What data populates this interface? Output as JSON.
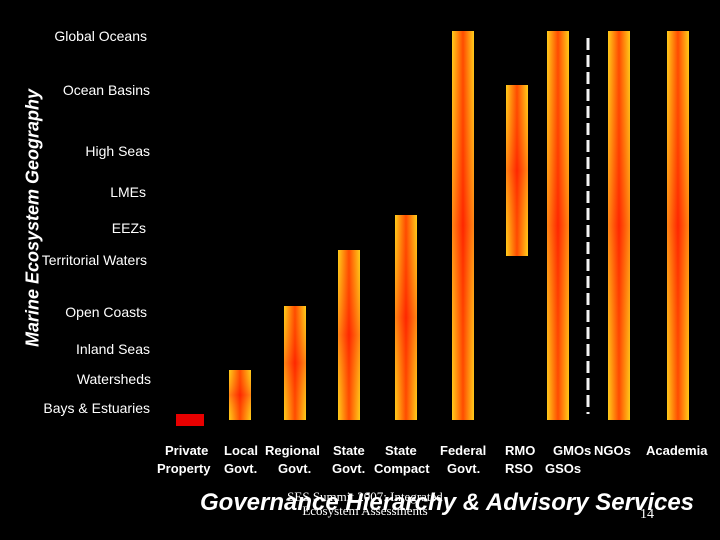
{
  "chart_data": {
    "type": "bar",
    "y_axis_title": "Marine Ecosystem Geography",
    "scale_levels": [
      "Global Oceans",
      "Ocean Basins",
      "High Seas",
      "LMEs",
      "EEZs",
      "Territorial Waters",
      "Open Coasts",
      "Inland Seas",
      "Watersheds",
      "Bays & Estuaries"
    ],
    "categories": [
      "Private Property",
      "Local Govt.",
      "Regional Govt.",
      "State Govt.",
      "State Compact",
      "Federal Govt.",
      "RMO RSO",
      "GMOs GSOs",
      "NGOs",
      "Academia"
    ],
    "x_label_lines": [
      [
        "Private",
        "Property"
      ],
      [
        "Local",
        "Govt."
      ],
      [
        "Regional",
        "Govt."
      ],
      [
        "State",
        "Govt."
      ],
      [
        "State",
        "Compact"
      ],
      [
        "Federal",
        "Govt."
      ],
      [
        "RMO",
        "RSO"
      ],
      [
        "GMOs",
        "GSOs"
      ],
      [
        "NGOs",
        ""
      ],
      [
        "Academia",
        ""
      ]
    ],
    "ranges": [
      {
        "category": "Private Property",
        "from": "Bays & Estuaries",
        "to": "Bays & Estuaries"
      },
      {
        "category": "Local Govt.",
        "from": "Bays & Estuaries",
        "to": "Watersheds"
      },
      {
        "category": "Regional Govt.",
        "from": "Bays & Estuaries",
        "to": "Open Coasts"
      },
      {
        "category": "State Govt.",
        "from": "Bays & Estuaries",
        "to": "Territorial Waters"
      },
      {
        "category": "State Compact",
        "from": "Bays & Estuaries",
        "to": "EEZs"
      },
      {
        "category": "Federal Govt.",
        "from": "Bays & Estuaries",
        "to": "Global Oceans"
      },
      {
        "category": "RMO RSO",
        "from": "Territorial Waters",
        "to": "Ocean Basins"
      },
      {
        "category": "GMOs GSOs",
        "from": "Bays & Estuaries",
        "to": "Global Oceans"
      },
      {
        "category": "NGOs",
        "from": "Bays & Estuaries",
        "to": "Global Oceans"
      },
      {
        "category": "Academia",
        "from": "Bays & Estuaries",
        "to": "Global Oceans"
      }
    ],
    "divider_after": "GMOs GSOs",
    "colors": {
      "background": "#000000",
      "bar_edge": "#FFD21F",
      "bar_mid": "#FF6A00",
      "bar_center": "#FF1A00",
      "base_bar": "#E80000",
      "divider": "#F4F4F4"
    }
  },
  "footer": {
    "title": "Governance Hierarchy & Advisory Services",
    "note": "SES Summit 2007: Integrated Ecosystem Assessments",
    "page": "14"
  }
}
